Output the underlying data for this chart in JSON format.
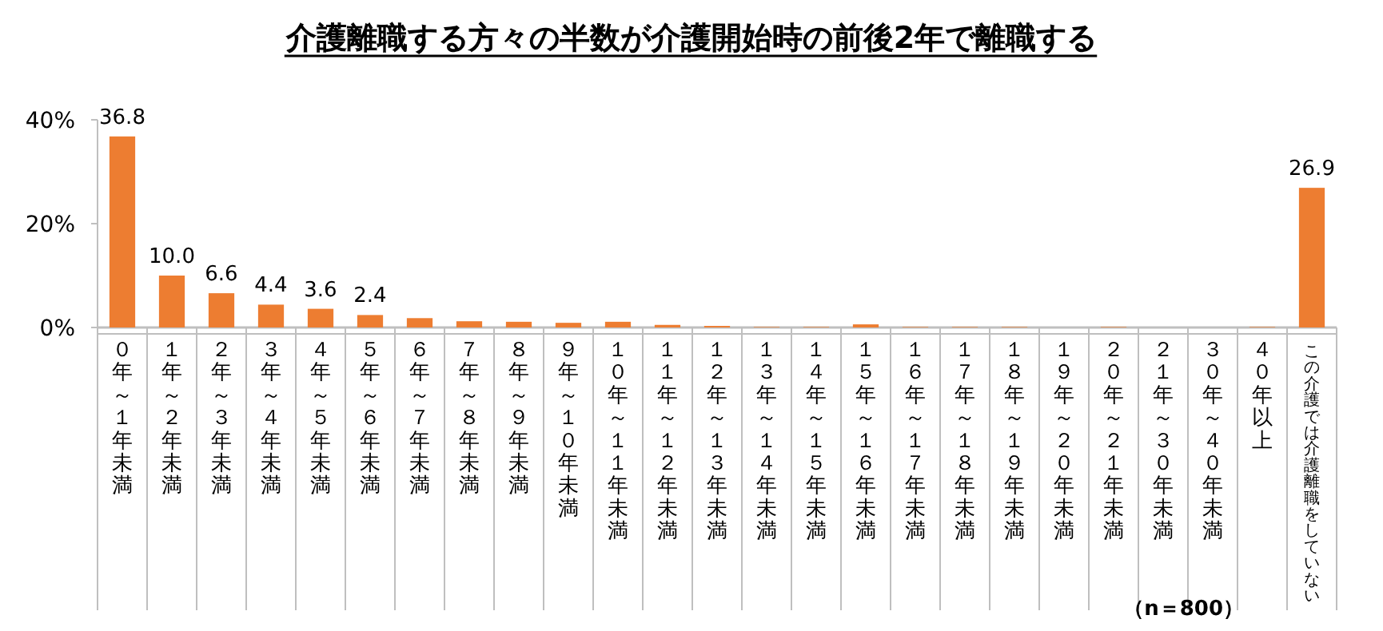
{
  "chart_data": {
    "type": "bar",
    "title": "介護離職する方々の半数が介護開始時の前後2年で離職する",
    "categories": [
      "０年～１年未満",
      "１年～２年未満",
      "２年～３年未満",
      "３年～４年未満",
      "４年～５年未満",
      "５年～６年未満",
      "６年～７年未満",
      "７年～８年未満",
      "８年～９年未満",
      "９年～１０年未満",
      "１０年～１１年未満",
      "１１年～１２年未満",
      "１２年～１３年未満",
      "１３年～１４年未満",
      "１４年～１５年未満",
      "１５年～１６年未満",
      "１６年～１７年未満",
      "１７年～１８年未満",
      "１８年～１９年未満",
      "１９年～２０年未満",
      "２０年～２１年未満",
      "２１年～３０年未満",
      "３０年～４０年未満",
      "４０年以上",
      "この介護では介護離職をしていない"
    ],
    "values": [
      36.8,
      10.0,
      6.6,
      4.4,
      3.6,
      2.4,
      1.8,
      1.2,
      1.1,
      0.9,
      1.1,
      0.5,
      0.3,
      0.1,
      0.1,
      0.6,
      0.1,
      0.1,
      0.1,
      0,
      0.1,
      0,
      0,
      0.1,
      26.9
    ],
    "value_labels": [
      "36.8",
      "10.0",
      "6.6",
      "4.4",
      "3.6",
      "2.4",
      null,
      null,
      null,
      null,
      null,
      null,
      null,
      null,
      null,
      null,
      null,
      null,
      null,
      null,
      null,
      null,
      null,
      null,
      "26.9"
    ],
    "color": "#ed7d31",
    "ylim": [
      0,
      40
    ],
    "yticks": [
      {
        "value": 0,
        "label": "0%"
      },
      {
        "value": 20,
        "label": "20%"
      },
      {
        "value": 40,
        "label": "40%"
      }
    ],
    "grid": false,
    "annotations": [
      "（n＝800）"
    ]
  }
}
